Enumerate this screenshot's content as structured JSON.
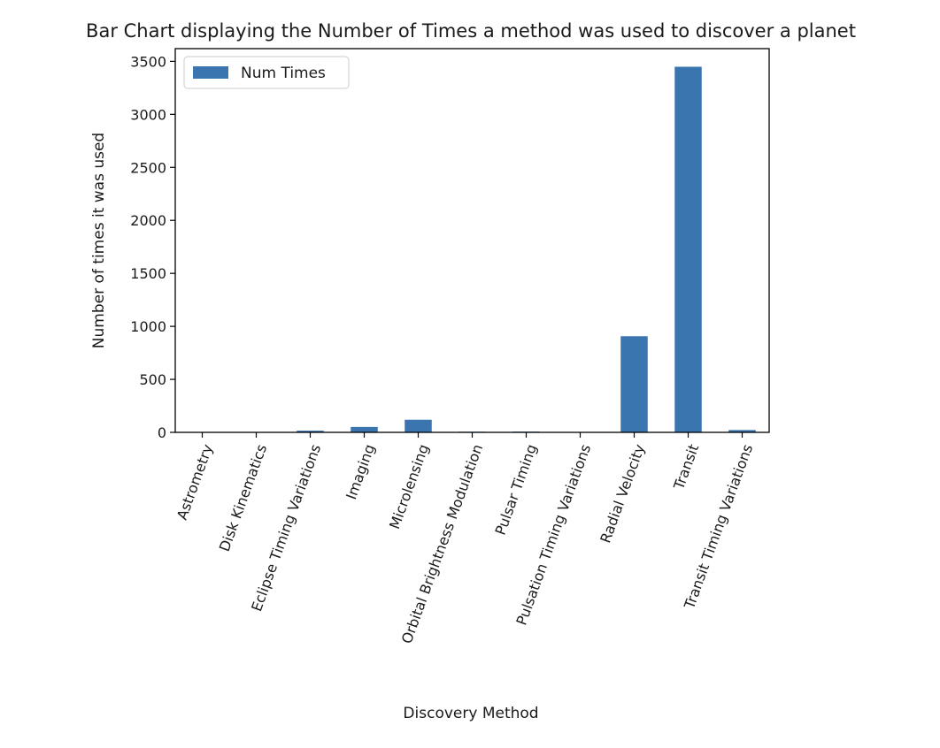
{
  "chart_data": {
    "type": "bar",
    "title": "Bar Chart displaying the Number of Times a method was used to discover a planet",
    "xlabel": "Discovery Method",
    "ylabel": "Number of times it was used",
    "categories": [
      "Astrometry",
      "Disk Kinematics",
      "Eclipse Timing Variations",
      "Imaging",
      "Microlensing",
      "Orbital Brightness Modulation",
      "Pulsar Timing",
      "Pulsation Timing Variations",
      "Radial Velocity",
      "Transit",
      "Transit Timing Variations"
    ],
    "series": [
      {
        "name": "Num Times",
        "values": [
          1,
          1,
          16,
          51,
          119,
          6,
          7,
          2,
          907,
          3449,
          22
        ],
        "color": "#3b75af"
      }
    ],
    "ylim": [
      0,
      3620
    ],
    "yticks": [
      0,
      500,
      1000,
      1500,
      2000,
      2500,
      3000,
      3500
    ],
    "grid": false,
    "legend_position": "top-left"
  }
}
